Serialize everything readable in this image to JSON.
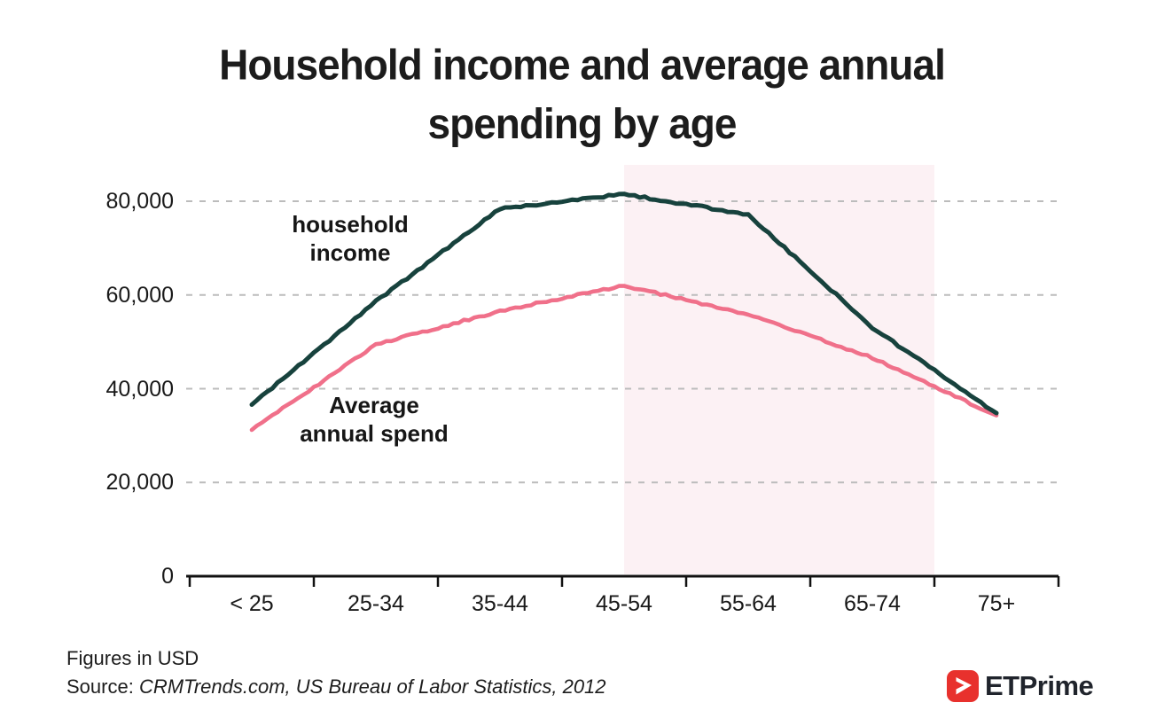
{
  "chart_data": {
    "type": "line",
    "title": "Household income and average annual spending by age",
    "categories": [
      "< 25",
      "25-34",
      "35-44",
      "45-54",
      "55-64",
      "65-74",
      "75+"
    ],
    "series": [
      {
        "name": "household income",
        "color": "#17423d",
        "values": [
          36600,
          58600,
          78400,
          81500,
          77200,
          53000,
          34800
        ]
      },
      {
        "name": "Average annual spend",
        "color": "#f0708a",
        "values": [
          31200,
          49400,
          56600,
          62000,
          55900,
          46600,
          34300
        ]
      }
    ],
    "xlabel": "",
    "ylabel": "",
    "ylim": [
      0,
      87500
    ],
    "yticks": [
      {
        "value": 0,
        "label": "0"
      },
      {
        "value": 20000,
        "label": "20,000"
      },
      {
        "value": 40000,
        "label": "40,000"
      },
      {
        "value": 60000,
        "label": "60,000"
      },
      {
        "value": 80000,
        "label": "80,000"
      }
    ],
    "grid": "horizontal-dashed",
    "gridline_color": "#bcbcbc",
    "legend_position": "inline-annotations",
    "highlight_band": {
      "from_category": "45-54",
      "to_category": "65-74",
      "color": "#fcf1f4",
      "note": "pale pink band from the 45-54 data point to the right edge of the 65-74 bin"
    },
    "annotations": [
      {
        "series": "household income",
        "lines": [
          "household",
          "income"
        ]
      },
      {
        "series": "Average annual spend",
        "lines": [
          "Average",
          "annual spend"
        ]
      }
    ]
  },
  "footer": {
    "note": "Figures in USD",
    "source_prefix": "Source: ",
    "source_text": "CRMTrends.com, US Bureau of Labor Statistics, 2012"
  },
  "branding": {
    "logo_text": "ETPrime",
    "logo_red": "#e8312d"
  }
}
